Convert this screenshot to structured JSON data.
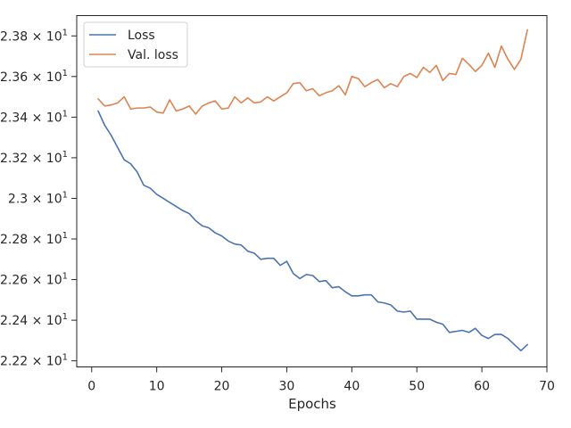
{
  "chart_data": {
    "type": "line",
    "xlabel": "Epochs",
    "ylabel": "",
    "xlim": [
      -2.3,
      70
    ],
    "ylim": [
      22.17,
      23.9
    ],
    "x_ticks": [
      0,
      10,
      20,
      30,
      40,
      50,
      60,
      70
    ],
    "y_ticks": [
      {
        "value": 22.2,
        "mantissa": "2.22",
        "exp": "1"
      },
      {
        "value": 22.4,
        "mantissa": "2.24",
        "exp": "1"
      },
      {
        "value": 22.6,
        "mantissa": "2.26",
        "exp": "1"
      },
      {
        "value": 22.8,
        "mantissa": "2.28",
        "exp": "1"
      },
      {
        "value": 23.0,
        "mantissa": "2.3",
        "exp": "1"
      },
      {
        "value": 23.2,
        "mantissa": "2.32",
        "exp": "1"
      },
      {
        "value": 23.4,
        "mantissa": "2.34",
        "exp": "1"
      },
      {
        "value": 23.6,
        "mantissa": "2.36",
        "exp": "1"
      },
      {
        "value": 23.8,
        "mantissa": "2.38",
        "exp": "1"
      }
    ],
    "y_tick_base": "× 10",
    "grid": false,
    "legend_position": "top-left",
    "series": [
      {
        "name": "Loss",
        "color": "#4c72b0",
        "x": [
          1,
          2,
          3,
          4,
          5,
          6,
          7,
          8,
          9,
          10,
          11,
          12,
          13,
          14,
          15,
          16,
          17,
          18,
          19,
          20,
          21,
          22,
          23,
          24,
          25,
          26,
          27,
          28,
          29,
          30,
          31,
          32,
          33,
          34,
          35,
          36,
          37,
          38,
          39,
          40,
          41,
          42,
          43,
          44,
          45,
          46,
          47,
          48,
          49,
          50,
          51,
          52,
          53,
          54,
          55,
          56,
          57,
          58,
          59,
          60,
          61,
          62,
          63,
          64,
          65,
          66,
          67
        ],
        "values": [
          23.43,
          23.36,
          23.31,
          23.25,
          23.19,
          23.17,
          23.13,
          23.065,
          23.05,
          23.02,
          23.0,
          22.98,
          22.96,
          22.94,
          22.925,
          22.89,
          22.865,
          22.855,
          22.83,
          22.815,
          22.79,
          22.775,
          22.77,
          22.74,
          22.73,
          22.7,
          22.705,
          22.705,
          22.67,
          22.69,
          22.63,
          22.605,
          22.625,
          22.62,
          22.59,
          22.595,
          22.56,
          22.565,
          22.54,
          22.52,
          22.52,
          22.525,
          22.525,
          22.49,
          22.485,
          22.475,
          22.445,
          22.44,
          22.445,
          22.405,
          22.405,
          22.405,
          22.39,
          22.38,
          22.34,
          22.345,
          22.35,
          22.34,
          22.36,
          22.325,
          22.31,
          22.33,
          22.33,
          22.31,
          22.28,
          22.25,
          22.28
        ]
      },
      {
        "name": "Val. loss",
        "color": "#dd8452",
        "x": [
          1,
          2,
          3,
          4,
          5,
          6,
          7,
          8,
          9,
          10,
          11,
          12,
          13,
          14,
          15,
          16,
          17,
          18,
          19,
          20,
          21,
          22,
          23,
          24,
          25,
          26,
          27,
          28,
          29,
          30,
          31,
          32,
          33,
          34,
          35,
          36,
          37,
          38,
          39,
          40,
          41,
          42,
          43,
          44,
          45,
          46,
          47,
          48,
          49,
          50,
          51,
          52,
          53,
          54,
          55,
          56,
          57,
          58,
          59,
          60,
          61,
          62,
          63,
          64,
          65,
          66,
          67
        ],
        "values": [
          23.49,
          23.455,
          23.46,
          23.47,
          23.5,
          23.44,
          23.445,
          23.445,
          23.45,
          23.425,
          23.42,
          23.485,
          23.43,
          23.44,
          23.455,
          23.415,
          23.455,
          23.47,
          23.48,
          23.44,
          23.445,
          23.5,
          23.47,
          23.495,
          23.47,
          23.475,
          23.5,
          23.48,
          23.5,
          23.52,
          23.565,
          23.57,
          23.53,
          23.54,
          23.505,
          23.52,
          23.53,
          23.555,
          23.51,
          23.6,
          23.59,
          23.55,
          23.57,
          23.585,
          23.545,
          23.565,
          23.55,
          23.6,
          23.615,
          23.595,
          23.645,
          23.62,
          23.655,
          23.58,
          23.615,
          23.61,
          23.69,
          23.66,
          23.625,
          23.655,
          23.715,
          23.645,
          23.75,
          23.685,
          23.635,
          23.685,
          23.83
        ]
      }
    ]
  }
}
